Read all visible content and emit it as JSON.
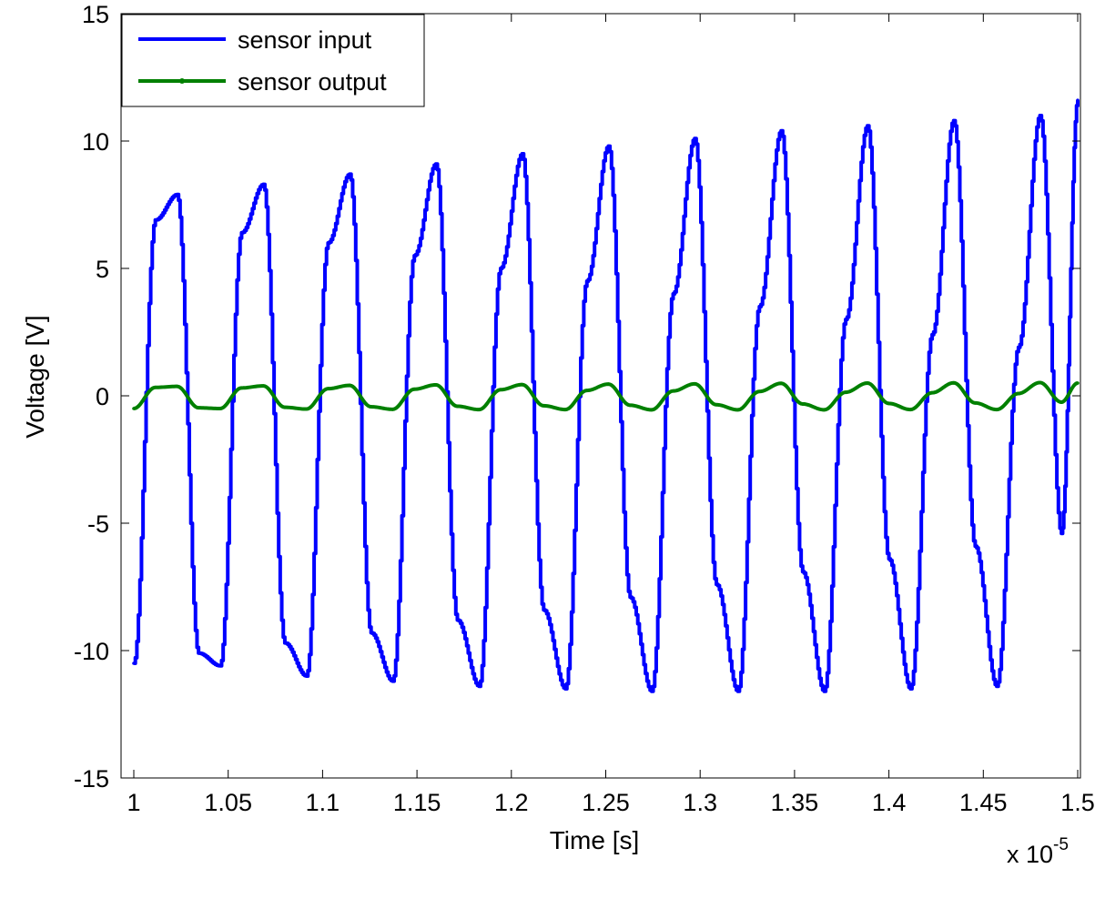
{
  "chart_data": {
    "type": "line",
    "title": "",
    "xlabel": "Time [s]",
    "ylabel": "Voltage [V]",
    "x_multiplier_label": {
      "base": "x 10",
      "exponent": "-5"
    },
    "xlim": [
      1.0,
      1.5
    ],
    "ylim": [
      -15,
      15
    ],
    "x_ticks": [
      1.0,
      1.05,
      1.1,
      1.15,
      1.2,
      1.25,
      1.3,
      1.35,
      1.4,
      1.45,
      1.5
    ],
    "x_tick_labels": [
      "1",
      "1.05",
      "1.1",
      "1.15",
      "1.2",
      "1.25",
      "1.3",
      "1.35",
      "1.4",
      "1.45",
      "1.5"
    ],
    "y_ticks": [
      -15,
      -10,
      -5,
      0,
      5,
      10,
      15
    ],
    "y_tick_labels": [
      "-15",
      "-10",
      "-5",
      "0",
      "5",
      "10",
      "15"
    ],
    "grid": false,
    "legend_position": "top-left",
    "series": [
      {
        "name": "sensor input",
        "color": "#0000ff",
        "style": "solid staircase line",
        "x": [
          1.0,
          1.0114,
          1.0229,
          1.0343,
          1.0457,
          1.0571,
          1.0686,
          1.08,
          1.0914,
          1.1029,
          1.1143,
          1.1257,
          1.1371,
          1.1486,
          1.16,
          1.1714,
          1.1829,
          1.1943,
          1.2057,
          1.2171,
          1.2286,
          1.24,
          1.2514,
          1.2629,
          1.2743,
          1.2857,
          1.2971,
          1.3086,
          1.32,
          1.3314,
          1.3429,
          1.3543,
          1.3657,
          1.3771,
          1.3886,
          1.4,
          1.4114,
          1.4229,
          1.4343,
          1.4457,
          1.4571,
          1.4686,
          1.48,
          1.4914,
          1.5
        ],
        "y": [
          -10.5,
          6.9,
          7.9,
          -10.1,
          -10.6,
          6.4,
          8.3,
          -9.7,
          -11.0,
          6.0,
          8.7,
          -9.3,
          -11.2,
          5.5,
          9.1,
          -8.8,
          -11.4,
          5.0,
          9.5,
          -8.4,
          -11.5,
          4.5,
          9.8,
          -7.9,
          -11.6,
          4.0,
          10.1,
          -7.4,
          -11.6,
          3.5,
          10.4,
          -6.9,
          -11.6,
          3.0,
          10.6,
          -6.4,
          -11.5,
          2.4,
          10.8,
          -5.9,
          -11.4,
          1.9,
          11.0,
          -5.4,
          11.6
        ]
      },
      {
        "name": "sensor output",
        "color": "#008000",
        "style": "solid line with point markers",
        "x": [
          1.0,
          1.0114,
          1.0229,
          1.0343,
          1.0457,
          1.0571,
          1.0686,
          1.08,
          1.0914,
          1.1029,
          1.1143,
          1.1257,
          1.1371,
          1.1486,
          1.16,
          1.1714,
          1.1829,
          1.1943,
          1.2057,
          1.2171,
          1.2286,
          1.24,
          1.2514,
          1.2629,
          1.2743,
          1.2857,
          1.2971,
          1.3086,
          1.32,
          1.3314,
          1.3429,
          1.3543,
          1.3657,
          1.3771,
          1.3886,
          1.4,
          1.4114,
          1.4229,
          1.4343,
          1.4457,
          1.4571,
          1.4686,
          1.48,
          1.4914,
          1.5
        ],
        "y": [
          -0.5,
          0.33,
          0.37,
          -0.47,
          -0.5,
          0.31,
          0.39,
          -0.45,
          -0.52,
          0.28,
          0.41,
          -0.43,
          -0.53,
          0.26,
          0.43,
          -0.41,
          -0.54,
          0.24,
          0.44,
          -0.39,
          -0.54,
          0.21,
          0.46,
          -0.37,
          -0.55,
          0.19,
          0.47,
          -0.35,
          -0.55,
          0.17,
          0.49,
          -0.32,
          -0.55,
          0.14,
          0.5,
          -0.3,
          -0.54,
          0.12,
          0.51,
          -0.28,
          -0.54,
          0.09,
          0.52,
          -0.25,
          0.5
        ]
      }
    ]
  }
}
